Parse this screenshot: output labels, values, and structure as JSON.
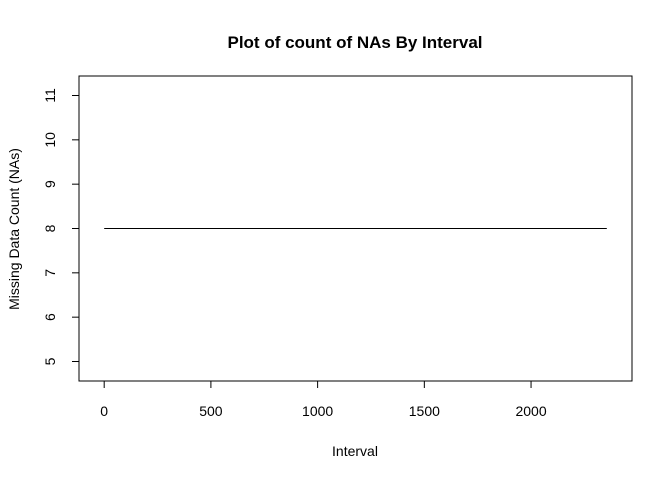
{
  "chart_data": {
    "type": "line",
    "title": "Plot of count of NAs By Interval",
    "xlabel": "Interval",
    "ylabel": "Missing Data Count (NAs)",
    "x": [
      0,
      2355
    ],
    "series": [
      {
        "values": [
          8,
          8
        ],
        "color": "#000000"
      }
    ],
    "xlim": [
      -118,
      2473
    ],
    "ylim": [
      4.56,
      11.44
    ],
    "xticks": [
      0,
      500,
      1000,
      1500,
      2000
    ],
    "yticks": [
      5,
      6,
      7,
      8,
      9,
      10,
      11
    ],
    "grid": false,
    "legend": "none"
  }
}
